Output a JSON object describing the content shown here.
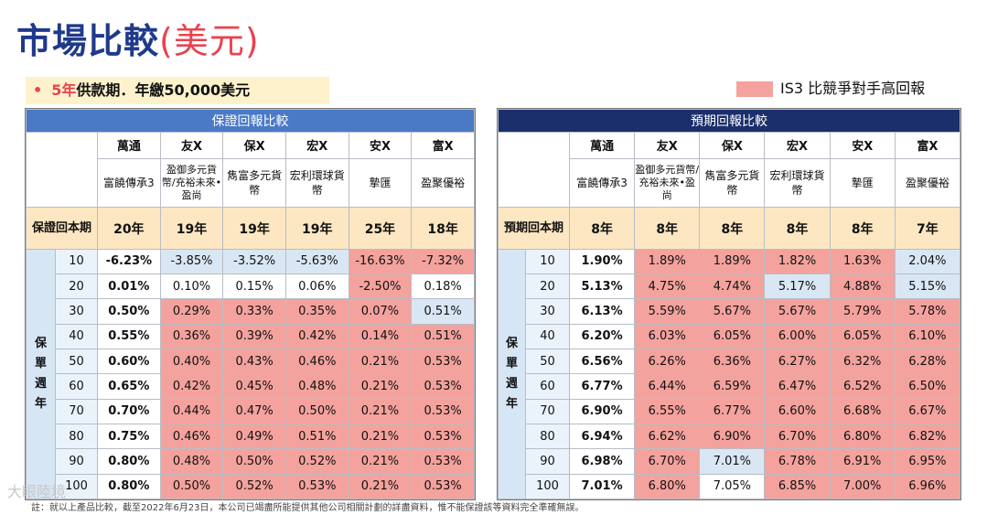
{
  "title": "市場比較",
  "title_suffix": "(美元)",
  "subtitle": {
    "bullet": "•",
    "highlight": "5年",
    "text": "供款期．年繳50,000美元"
  },
  "legend": {
    "color": "#f4a29d",
    "text": "IS3 比競爭對手高回報"
  },
  "colors": {
    "red_highlight": "#f4a29d",
    "blue_highlight": "#d9e7f4",
    "payback_row": "#fce7c2",
    "left_header": "#4a7ac6",
    "right_header": "#1a2f6b"
  },
  "companies": [
    "萬通",
    "友X",
    "保X",
    "宏X",
    "安X",
    "富X"
  ],
  "products": [
    "富饒傳承3",
    "盈御多元貨幣/充裕未來•盈尚",
    "雋富多元貨幣",
    "宏利環球貨幣",
    "摯匯",
    "盈聚優裕"
  ],
  "year_label": "保單週年",
  "left": {
    "header": "保證回報比較",
    "payback_label": "保證回本期",
    "payback": [
      "20年",
      "19年",
      "19年",
      "19年",
      "25年",
      "18年"
    ],
    "rows": [
      {
        "year": "10",
        "values": [
          "-6.23%",
          "-3.85%",
          "-3.52%",
          "-5.63%",
          "-16.63%",
          "-7.32%"
        ],
        "hl": [
          "b",
          "l",
          "l",
          "l",
          "r",
          "r"
        ]
      },
      {
        "year": "20",
        "values": [
          "0.01%",
          "0.10%",
          "0.15%",
          "0.06%",
          "-2.50%",
          "0.18%"
        ],
        "hl": [
          "b",
          "w",
          "w",
          "w",
          "r",
          "w"
        ]
      },
      {
        "year": "30",
        "values": [
          "0.50%",
          "0.29%",
          "0.33%",
          "0.35%",
          "0.07%",
          "0.51%"
        ],
        "hl": [
          "b",
          "r",
          "r",
          "r",
          "r",
          "l"
        ]
      },
      {
        "year": "40",
        "values": [
          "0.55%",
          "0.36%",
          "0.39%",
          "0.42%",
          "0.14%",
          "0.51%"
        ],
        "hl": [
          "b",
          "r",
          "r",
          "r",
          "r",
          "r"
        ]
      },
      {
        "year": "50",
        "values": [
          "0.60%",
          "0.40%",
          "0.43%",
          "0.46%",
          "0.21%",
          "0.53%"
        ],
        "hl": [
          "b",
          "r",
          "r",
          "r",
          "r",
          "r"
        ]
      },
      {
        "year": "60",
        "values": [
          "0.65%",
          "0.42%",
          "0.45%",
          "0.48%",
          "0.21%",
          "0.53%"
        ],
        "hl": [
          "b",
          "r",
          "r",
          "r",
          "r",
          "r"
        ]
      },
      {
        "year": "70",
        "values": [
          "0.70%",
          "0.44%",
          "0.47%",
          "0.50%",
          "0.21%",
          "0.53%"
        ],
        "hl": [
          "b",
          "r",
          "r",
          "r",
          "r",
          "r"
        ]
      },
      {
        "year": "80",
        "values": [
          "0.75%",
          "0.46%",
          "0.49%",
          "0.51%",
          "0.21%",
          "0.53%"
        ],
        "hl": [
          "b",
          "r",
          "r",
          "r",
          "r",
          "r"
        ]
      },
      {
        "year": "90",
        "values": [
          "0.80%",
          "0.48%",
          "0.50%",
          "0.52%",
          "0.21%",
          "0.53%"
        ],
        "hl": [
          "b",
          "r",
          "r",
          "r",
          "r",
          "r"
        ]
      },
      {
        "year": "100",
        "values": [
          "0.80%",
          "0.50%",
          "0.52%",
          "0.53%",
          "0.21%",
          "0.53%"
        ],
        "hl": [
          "b",
          "r",
          "r",
          "r",
          "r",
          "r"
        ]
      }
    ]
  },
  "right": {
    "header": "預期回報比較",
    "payback_label": "預期回本期",
    "payback": [
      "8年",
      "8年",
      "8年",
      "8年",
      "8年",
      "7年"
    ],
    "rows": [
      {
        "year": "10",
        "values": [
          "1.90%",
          "1.89%",
          "1.89%",
          "1.82%",
          "1.63%",
          "2.04%"
        ],
        "hl": [
          "b",
          "r",
          "r",
          "r",
          "r",
          "l"
        ]
      },
      {
        "year": "20",
        "values": [
          "5.13%",
          "4.75%",
          "4.74%",
          "5.17%",
          "4.88%",
          "5.15%"
        ],
        "hl": [
          "b",
          "r",
          "r",
          "l",
          "r",
          "l"
        ]
      },
      {
        "year": "30",
        "values": [
          "6.13%",
          "5.59%",
          "5.67%",
          "5.67%",
          "5.79%",
          "5.78%"
        ],
        "hl": [
          "b",
          "r",
          "r",
          "r",
          "r",
          "r"
        ]
      },
      {
        "year": "40",
        "values": [
          "6.20%",
          "6.03%",
          "6.05%",
          "6.00%",
          "6.05%",
          "6.10%"
        ],
        "hl": [
          "b",
          "r",
          "r",
          "r",
          "r",
          "r"
        ]
      },
      {
        "year": "50",
        "values": [
          "6.56%",
          "6.26%",
          "6.36%",
          "6.27%",
          "6.32%",
          "6.28%"
        ],
        "hl": [
          "b",
          "r",
          "r",
          "r",
          "r",
          "r"
        ]
      },
      {
        "year": "60",
        "values": [
          "6.77%",
          "6.44%",
          "6.59%",
          "6.47%",
          "6.52%",
          "6.50%"
        ],
        "hl": [
          "b",
          "r",
          "r",
          "r",
          "r",
          "r"
        ]
      },
      {
        "year": "70",
        "values": [
          "6.90%",
          "6.55%",
          "6.77%",
          "6.60%",
          "6.68%",
          "6.67%"
        ],
        "hl": [
          "b",
          "r",
          "r",
          "r",
          "r",
          "r"
        ]
      },
      {
        "year": "80",
        "values": [
          "6.94%",
          "6.62%",
          "6.90%",
          "6.70%",
          "6.80%",
          "6.82%"
        ],
        "hl": [
          "b",
          "r",
          "r",
          "r",
          "r",
          "r"
        ]
      },
      {
        "year": "90",
        "values": [
          "6.98%",
          "6.70%",
          "7.01%",
          "6.78%",
          "6.91%",
          "6.95%"
        ],
        "hl": [
          "b",
          "r",
          "l",
          "r",
          "r",
          "r"
        ]
      },
      {
        "year": "100",
        "values": [
          "7.01%",
          "6.80%",
          "7.05%",
          "6.85%",
          "7.00%",
          "6.96%"
        ],
        "hl": [
          "b",
          "r",
          "w",
          "r",
          "r",
          "r"
        ]
      }
    ]
  },
  "footnote": "註：就以上產品比較，截至2022年6月23日，本公司已竭盡所能提供其他公司相關計劃的詳盡資料，惟不能保證該等資料完全準確無誤。",
  "watermark": "大眼陸境"
}
